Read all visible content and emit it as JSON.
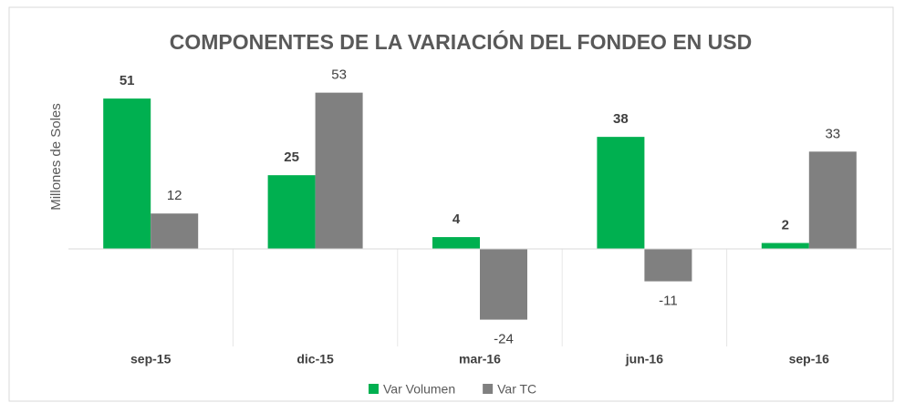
{
  "chart_data": {
    "type": "bar",
    "title": "COMPONENTES DE LA VARIACIÓN DEL FONDEO EN USD",
    "y_label": "Millones de Soles",
    "categories": [
      "sep-15",
      "dic-15",
      "mar-16",
      "jun-16",
      "sep-16"
    ],
    "series": [
      {
        "name": "Var Volumen",
        "color": "#00b050",
        "values": [
          51,
          25,
          4,
          38,
          2
        ]
      },
      {
        "name": "Var TC",
        "color": "#808080",
        "values": [
          12,
          53,
          -24,
          -11,
          33
        ]
      }
    ],
    "ylim": [
      -30,
      60
    ],
    "legend": "bottom"
  }
}
